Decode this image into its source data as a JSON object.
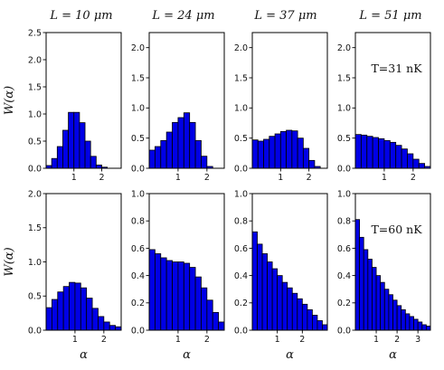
{
  "figure": {
    "column_titles": [
      "L = 10 μm",
      "L = 24 μm",
      "L = 37 μm",
      "L = 51 μm"
    ],
    "ylabel": "W(α)",
    "xlabel": "α",
    "bar_color": "#0000e6",
    "bar_edge_color": "#000000",
    "grid": false
  },
  "chart_data": [
    {
      "type": "bar",
      "row": 0,
      "col": 0,
      "title": "L = 10 μm",
      "ylabel": "W(α)",
      "xlabel": "",
      "xlim": [
        0,
        2.7
      ],
      "ylim": [
        0,
        2.5
      ],
      "xticks": [
        1,
        2
      ],
      "yticks": [
        0.0,
        0.5,
        1.0,
        1.5,
        2.0,
        2.5
      ],
      "bin_start": 0.0,
      "bin_width": 0.2,
      "values": [
        0.05,
        0.18,
        0.4,
        0.7,
        1.03,
        1.03,
        0.84,
        0.5,
        0.22,
        0.06,
        0.02
      ],
      "annotation": ""
    },
    {
      "type": "bar",
      "row": 0,
      "col": 1,
      "title": "L = 24 μm",
      "ylabel": "",
      "xlabel": "",
      "xlim": [
        0,
        2.6
      ],
      "ylim": [
        0,
        2.25
      ],
      "xticks": [
        1,
        2
      ],
      "yticks": [
        0.0,
        0.5,
        1.0,
        1.5,
        2.0
      ],
      "bin_start": 0.0,
      "bin_width": 0.2,
      "values": [
        0.3,
        0.36,
        0.46,
        0.6,
        0.76,
        0.84,
        0.92,
        0.76,
        0.46,
        0.2,
        0.03
      ],
      "annotation": ""
    },
    {
      "type": "bar",
      "row": 0,
      "col": 2,
      "title": "L = 37 μm",
      "ylabel": "",
      "xlabel": "",
      "xlim": [
        0,
        2.65
      ],
      "ylim": [
        0,
        2.25
      ],
      "xticks": [
        1,
        2
      ],
      "yticks": [
        0.0,
        0.5,
        1.0,
        1.5,
        2.0
      ],
      "bin_start": 0.0,
      "bin_width": 0.2,
      "values": [
        0.47,
        0.45,
        0.48,
        0.53,
        0.57,
        0.61,
        0.63,
        0.62,
        0.5,
        0.33,
        0.13,
        0.03
      ],
      "annotation": ""
    },
    {
      "type": "bar",
      "row": 0,
      "col": 3,
      "title": "L = 51 μm",
      "ylabel": "",
      "xlabel": "",
      "xlim": [
        0,
        2.6
      ],
      "ylim": [
        0,
        2.25
      ],
      "xticks": [
        1,
        2
      ],
      "yticks": [
        0.0,
        0.5,
        1.0,
        1.5,
        2.0
      ],
      "bin_start": 0.0,
      "bin_width": 0.2,
      "values": [
        0.56,
        0.55,
        0.53,
        0.51,
        0.49,
        0.46,
        0.43,
        0.38,
        0.32,
        0.24,
        0.15,
        0.08,
        0.03
      ],
      "annotation": "T=31 nK"
    },
    {
      "type": "bar",
      "row": 1,
      "col": 0,
      "title": "",
      "ylabel": "W(α)",
      "xlabel": "α",
      "xlim": [
        0,
        2.6
      ],
      "ylim": [
        0,
        2.0
      ],
      "xticks": [
        1,
        2
      ],
      "yticks": [
        0.0,
        0.5,
        1.0,
        1.5,
        2.0
      ],
      "bin_start": 0.0,
      "bin_width": 0.2,
      "values": [
        0.33,
        0.45,
        0.56,
        0.64,
        0.7,
        0.69,
        0.62,
        0.47,
        0.32,
        0.2,
        0.12,
        0.07,
        0.05
      ],
      "annotation": ""
    },
    {
      "type": "bar",
      "row": 1,
      "col": 1,
      "title": "",
      "ylabel": "",
      "xlabel": "α",
      "xlim": [
        0,
        2.6
      ],
      "ylim": [
        0,
        1.0
      ],
      "xticks": [
        1,
        2
      ],
      "yticks": [
        0.0,
        0.2,
        0.4,
        0.6,
        0.8,
        1.0
      ],
      "bin_start": 0.0,
      "bin_width": 0.2,
      "values": [
        0.59,
        0.56,
        0.53,
        0.51,
        0.5,
        0.5,
        0.49,
        0.46,
        0.39,
        0.31,
        0.22,
        0.13,
        0.06
      ],
      "annotation": ""
    },
    {
      "type": "bar",
      "row": 1,
      "col": 2,
      "title": "",
      "ylabel": "",
      "xlabel": "α",
      "xlim": [
        0,
        3.0
      ],
      "ylim": [
        0,
        1.0
      ],
      "xticks": [
        1,
        2
      ],
      "yticks": [
        0.0,
        0.2,
        0.4,
        0.6,
        0.8,
        1.0
      ],
      "bin_start": 0.0,
      "bin_width": 0.2,
      "values": [
        0.72,
        0.63,
        0.56,
        0.5,
        0.45,
        0.4,
        0.35,
        0.31,
        0.27,
        0.23,
        0.19,
        0.15,
        0.11,
        0.07,
        0.04
      ],
      "annotation": ""
    },
    {
      "type": "bar",
      "row": 1,
      "col": 3,
      "title": "",
      "ylabel": "",
      "xlabel": "α",
      "xlim": [
        0,
        3.6
      ],
      "ylim": [
        0,
        1.0
      ],
      "xticks": [
        1,
        2,
        3
      ],
      "yticks": [
        0.0,
        0.2,
        0.4,
        0.6,
        0.8,
        1.0
      ],
      "bin_start": 0.0,
      "bin_width": 0.2,
      "values": [
        0.81,
        0.68,
        0.59,
        0.52,
        0.46,
        0.4,
        0.35,
        0.3,
        0.26,
        0.22,
        0.18,
        0.15,
        0.12,
        0.1,
        0.08,
        0.06,
        0.04,
        0.03
      ],
      "annotation": "T=60 nK"
    }
  ]
}
